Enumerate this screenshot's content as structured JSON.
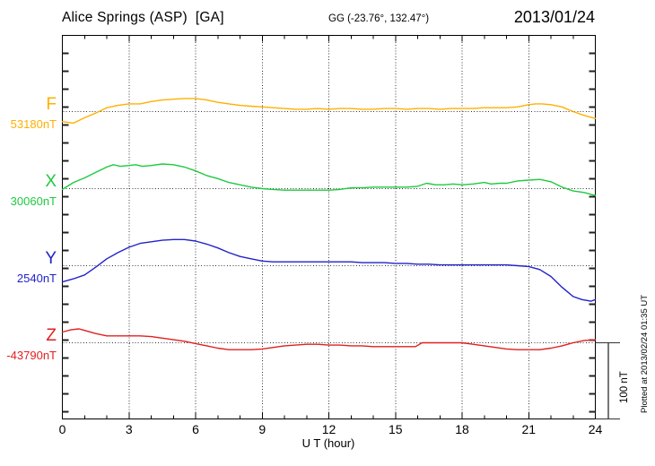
{
  "header": {
    "station_title": "Alice Springs (ASP)  [GA]",
    "geographic_coords": "GG (-23.76°, 132.47°)",
    "date": "2013/01/24"
  },
  "traces": [
    {
      "id": "F",
      "letter": "F",
      "base_label": "53180nT",
      "color": "#FFB000"
    },
    {
      "id": "X",
      "letter": "X",
      "base_label": "30060nT",
      "color": "#1FC93F"
    },
    {
      "id": "Y",
      "letter": "Y",
      "base_label": "2540nT",
      "color": "#2222CC"
    },
    {
      "id": "Z",
      "letter": "Z",
      "base_label": "-43790nT",
      "color": "#E02020"
    }
  ],
  "x_axis": {
    "label": "U T (hour)",
    "tick_labels": [
      "0",
      "3",
      "6",
      "9",
      "12",
      "15",
      "18",
      "21",
      "24"
    ]
  },
  "scale_bar": {
    "label": "100 nT"
  },
  "side_note": "Plotted at 2013/02/24 01:35 UT",
  "chart_data": {
    "type": "line",
    "title": "Alice Springs (ASP) [GA] magnetogram",
    "xlabel": "U T (hour)",
    "x_range": [
      0,
      24
    ],
    "x_ticks": [
      0,
      3,
      6,
      9,
      12,
      15,
      18,
      21,
      24
    ],
    "grid": "dotted, vertical every 3 h, horizontal at each trace baseline",
    "scale_bar_nT": 100,
    "unit": "nT",
    "series": [
      {
        "name": "F",
        "baseline_value": 53180,
        "color": "#FFB000",
        "points": [
          [
            0,
            53167
          ],
          [
            0.5,
            53165
          ],
          [
            1,
            53172
          ],
          [
            1.5,
            53178
          ],
          [
            2,
            53185
          ],
          [
            2.5,
            53188
          ],
          [
            3,
            53190
          ],
          [
            3.5,
            53190
          ],
          [
            4,
            53193
          ],
          [
            4.5,
            53195
          ],
          [
            5,
            53196
          ],
          [
            5.5,
            53197
          ],
          [
            6,
            53197
          ],
          [
            6.5,
            53195
          ],
          [
            7,
            53192
          ],
          [
            7.5,
            53190
          ],
          [
            8,
            53188
          ],
          [
            8.5,
            53187
          ],
          [
            9,
            53186
          ],
          [
            9.5,
            53185
          ],
          [
            10,
            53184
          ],
          [
            10.5,
            53183
          ],
          [
            11,
            53183
          ],
          [
            11.5,
            53184
          ],
          [
            12,
            53183
          ],
          [
            12.5,
            53184
          ],
          [
            13,
            53184
          ],
          [
            13.5,
            53183
          ],
          [
            14,
            53183
          ],
          [
            14.5,
            53184
          ],
          [
            15,
            53184
          ],
          [
            15.5,
            53183
          ],
          [
            16,
            53184
          ],
          [
            16.5,
            53184
          ],
          [
            17,
            53183
          ],
          [
            17.5,
            53184
          ],
          [
            18,
            53184
          ],
          [
            18.5,
            53184
          ],
          [
            19,
            53185
          ],
          [
            19.5,
            53185
          ],
          [
            20,
            53185
          ],
          [
            20.5,
            53186
          ],
          [
            21,
            53189
          ],
          [
            21.3,
            53190
          ],
          [
            21.6,
            53190
          ],
          [
            22,
            53189
          ],
          [
            22.5,
            53186
          ],
          [
            23,
            53180
          ],
          [
            23.5,
            53175
          ],
          [
            24,
            53171
          ]
        ]
      },
      {
        "name": "X",
        "baseline_value": 30060,
        "color": "#1FC93F",
        "points": [
          [
            0,
            30059
          ],
          [
            0.5,
            30068
          ],
          [
            1,
            30074
          ],
          [
            1.5,
            30081
          ],
          [
            2,
            30088
          ],
          [
            2.3,
            30091
          ],
          [
            2.6,
            30089
          ],
          [
            3,
            30090
          ],
          [
            3.3,
            30091
          ],
          [
            3.6,
            30089
          ],
          [
            4,
            30090
          ],
          [
            4.5,
            30092
          ],
          [
            5,
            30091
          ],
          [
            5.5,
            30088
          ],
          [
            6,
            30083
          ],
          [
            6.5,
            30077
          ],
          [
            7,
            30073
          ],
          [
            7.5,
            30068
          ],
          [
            8,
            30065
          ],
          [
            8.5,
            30062
          ],
          [
            9,
            30060
          ],
          [
            9.5,
            30059
          ],
          [
            10,
            30058
          ],
          [
            10.5,
            30058
          ],
          [
            11,
            30058
          ],
          [
            11.5,
            30058
          ],
          [
            12,
            30058
          ],
          [
            12.5,
            30059
          ],
          [
            13,
            30061
          ],
          [
            13.5,
            30061
          ],
          [
            14,
            30062
          ],
          [
            14.5,
            30062
          ],
          [
            15,
            30062
          ],
          [
            15.5,
            30062
          ],
          [
            16,
            30063
          ],
          [
            16.4,
            30067
          ],
          [
            16.8,
            30065
          ],
          [
            17.2,
            30065
          ],
          [
            17.6,
            30066
          ],
          [
            18,
            30065
          ],
          [
            18.5,
            30066
          ],
          [
            19,
            30068
          ],
          [
            19.3,
            30066
          ],
          [
            19.7,
            30067
          ],
          [
            20,
            30067
          ],
          [
            20.5,
            30070
          ],
          [
            21,
            30071
          ],
          [
            21.5,
            30072
          ],
          [
            22,
            30069
          ],
          [
            22.5,
            30062
          ],
          [
            23,
            30057
          ],
          [
            23.5,
            30055
          ],
          [
            24,
            30051
          ]
        ]
      },
      {
        "name": "Y",
        "baseline_value": 2540,
        "color": "#2222CC",
        "points": [
          [
            0,
            2519
          ],
          [
            0.5,
            2523
          ],
          [
            1,
            2528
          ],
          [
            1.5,
            2538
          ],
          [
            2,
            2549
          ],
          [
            2.5,
            2557
          ],
          [
            3,
            2564
          ],
          [
            3.5,
            2569
          ],
          [
            4,
            2571
          ],
          [
            4.5,
            2573
          ],
          [
            5,
            2574
          ],
          [
            5.5,
            2574
          ],
          [
            6,
            2572
          ],
          [
            6.5,
            2568
          ],
          [
            7,
            2563
          ],
          [
            7.5,
            2557
          ],
          [
            8,
            2552
          ],
          [
            8.5,
            2549
          ],
          [
            9,
            2546
          ],
          [
            9.5,
            2545
          ],
          [
            10,
            2545
          ],
          [
            10.5,
            2545
          ],
          [
            11,
            2545
          ],
          [
            11.5,
            2545
          ],
          [
            12,
            2545
          ],
          [
            12.5,
            2545
          ],
          [
            13,
            2545
          ],
          [
            13.5,
            2544
          ],
          [
            14,
            2544
          ],
          [
            14.5,
            2544
          ],
          [
            15,
            2543
          ],
          [
            15.5,
            2543
          ],
          [
            16,
            2542
          ],
          [
            16.5,
            2542
          ],
          [
            17,
            2541
          ],
          [
            17.5,
            2541
          ],
          [
            18,
            2541
          ],
          [
            18.5,
            2541
          ],
          [
            19,
            2541
          ],
          [
            19.5,
            2541
          ],
          [
            20,
            2541
          ],
          [
            20.5,
            2540
          ],
          [
            21,
            2539
          ],
          [
            21.5,
            2535
          ],
          [
            22,
            2526
          ],
          [
            22.5,
            2512
          ],
          [
            23,
            2500
          ],
          [
            23.4,
            2496
          ],
          [
            23.8,
            2494
          ],
          [
            24,
            2496
          ]
        ]
      },
      {
        "name": "Z",
        "baseline_value": -43790,
        "color": "#E02020",
        "points": [
          [
            0,
            -43776
          ],
          [
            0.4,
            -43773
          ],
          [
            0.75,
            -43772
          ],
          [
            1,
            -43774
          ],
          [
            1.5,
            -43778
          ],
          [
            2,
            -43781
          ],
          [
            2.5,
            -43781
          ],
          [
            3,
            -43781
          ],
          [
            3.5,
            -43781
          ],
          [
            4,
            -43782
          ],
          [
            4.5,
            -43784
          ],
          [
            5,
            -43786
          ],
          [
            5.5,
            -43788
          ],
          [
            6,
            -43791
          ],
          [
            6.5,
            -43794
          ],
          [
            7,
            -43797
          ],
          [
            7.5,
            -43799
          ],
          [
            8,
            -43799
          ],
          [
            8.5,
            -43799
          ],
          [
            9,
            -43798
          ],
          [
            9.5,
            -43796
          ],
          [
            10,
            -43794
          ],
          [
            10.5,
            -43793
          ],
          [
            11,
            -43792
          ],
          [
            11.5,
            -43792
          ],
          [
            12,
            -43793
          ],
          [
            12.5,
            -43793
          ],
          [
            13,
            -43794
          ],
          [
            13.5,
            -43794
          ],
          [
            14,
            -43795
          ],
          [
            14.5,
            -43795
          ],
          [
            15,
            -43795
          ],
          [
            15.5,
            -43795
          ],
          [
            15.9,
            -43795
          ],
          [
            16.2,
            -43790
          ],
          [
            17,
            -43790
          ],
          [
            17.5,
            -43790
          ],
          [
            18,
            -43790
          ],
          [
            18.5,
            -43792
          ],
          [
            19,
            -43794
          ],
          [
            19.5,
            -43796
          ],
          [
            20,
            -43798
          ],
          [
            20.5,
            -43799
          ],
          [
            21,
            -43799
          ],
          [
            21.5,
            -43799
          ],
          [
            22,
            -43797
          ],
          [
            22.5,
            -43794
          ],
          [
            23,
            -43790
          ],
          [
            23.5,
            -43787
          ],
          [
            24,
            -43786
          ]
        ]
      }
    ]
  }
}
